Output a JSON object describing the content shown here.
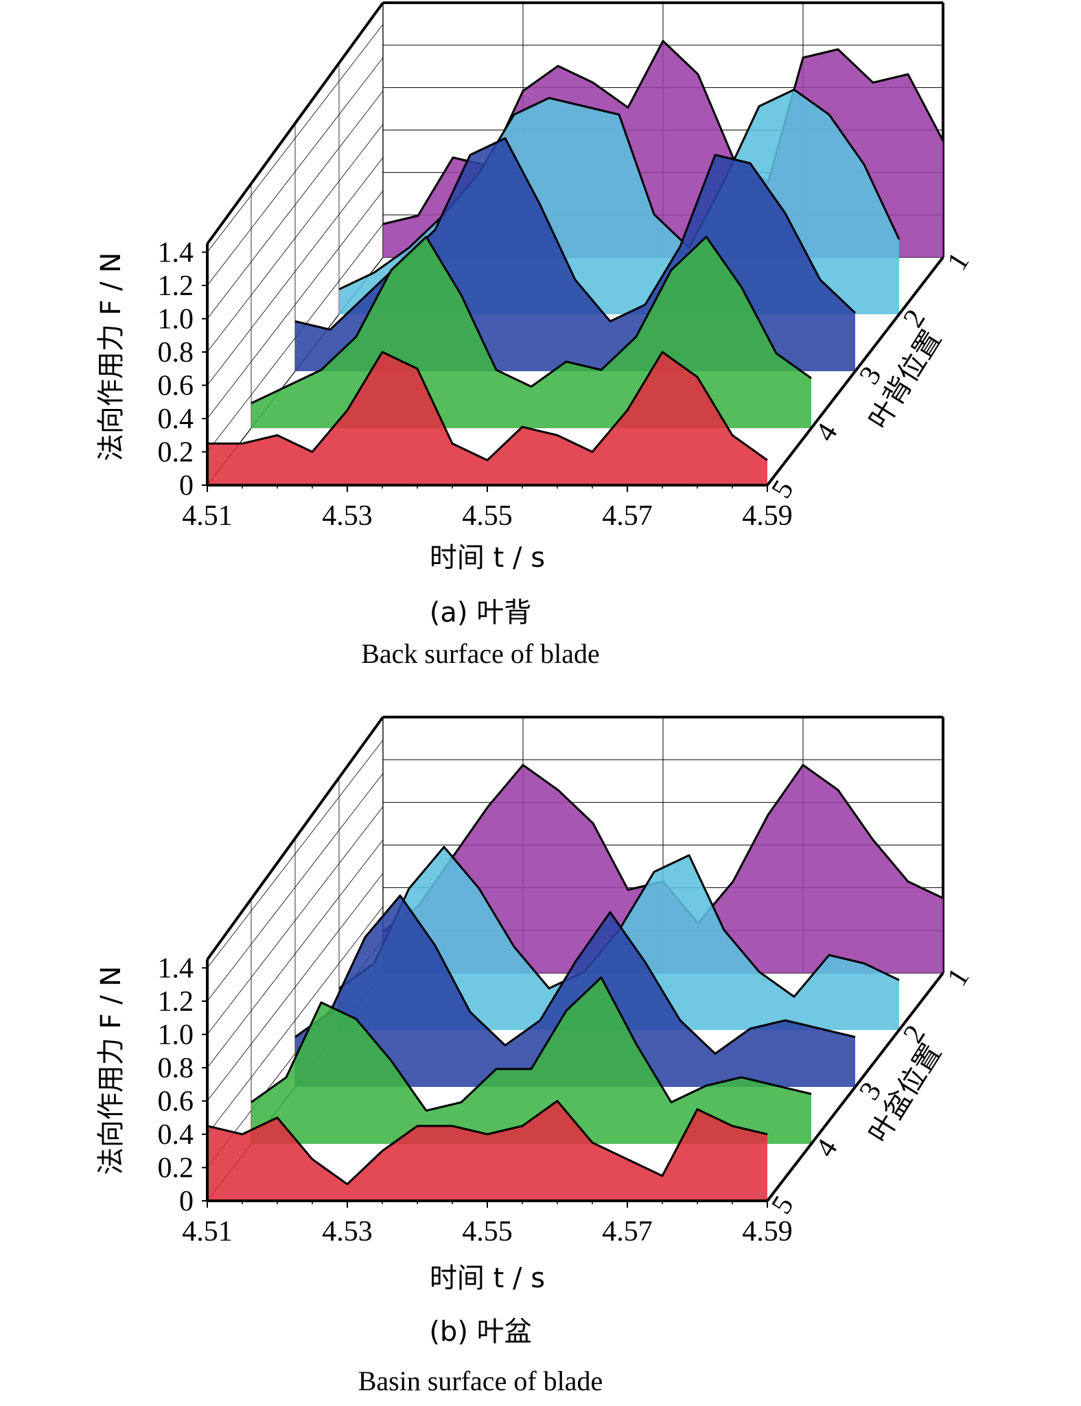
{
  "chart_data": [
    {
      "type": "area",
      "chart_style": "3d-waterfall",
      "ylabel": "法向作用力 F / N",
      "xlabel": "时间 t / s",
      "zlabel": "叶背位置",
      "caption_cn": "(a) 叶背",
      "caption_en": "Back surface of blade",
      "xlim": [
        4.51,
        4.59
      ],
      "ylim": [
        0,
        1.4
      ],
      "x_ticks": [
        "4.51",
        "4.53",
        "4.55",
        "4.57",
        "4.59"
      ],
      "y_ticks": [
        "0",
        "0.2",
        "0.4",
        "0.6",
        "0.8",
        "1.0",
        "1.2",
        "1.4"
      ],
      "z_ticks": [
        "1",
        "2",
        "3",
        "4",
        "5"
      ],
      "grid": true,
      "x": [
        4.51,
        4.515,
        4.52,
        4.525,
        4.53,
        4.535,
        4.54,
        4.545,
        4.55,
        4.555,
        4.56,
        4.565,
        4.57,
        4.575,
        4.58,
        4.585,
        4.59
      ],
      "series": [
        {
          "name": "1",
          "color": "#9B3FA6",
          "values": [
            0.2,
            0.25,
            0.6,
            0.55,
            1.0,
            1.15,
            1.05,
            0.9,
            1.3,
            1.1,
            0.6,
            0.45,
            1.2,
            1.25,
            1.05,
            1.1,
            0.7
          ]
        },
        {
          "name": "2",
          "color": "#5DC0DE",
          "values": [
            0.15,
            0.25,
            0.4,
            0.6,
            0.85,
            1.2,
            1.3,
            1.25,
            1.2,
            0.6,
            0.4,
            0.8,
            1.25,
            1.35,
            1.2,
            0.9,
            0.45
          ]
        },
        {
          "name": "3",
          "color": "#2B46A4",
          "values": [
            0.3,
            0.25,
            0.45,
            0.65,
            0.85,
            1.3,
            1.4,
            1.0,
            0.55,
            0.3,
            0.4,
            0.75,
            1.3,
            1.25,
            0.95,
            0.55,
            0.35
          ]
        },
        {
          "name": "4",
          "color": "#3DB445",
          "values": [
            0.15,
            0.25,
            0.35,
            0.55,
            0.95,
            1.15,
            0.8,
            0.35,
            0.25,
            0.4,
            0.35,
            0.55,
            0.95,
            1.15,
            0.85,
            0.45,
            0.3
          ]
        },
        {
          "name": "5",
          "color": "#E0303F",
          "values": [
            0.25,
            0.25,
            0.3,
            0.2,
            0.45,
            0.8,
            0.7,
            0.25,
            0.15,
            0.35,
            0.3,
            0.2,
            0.45,
            0.8,
            0.65,
            0.3,
            0.15
          ]
        }
      ]
    },
    {
      "type": "area",
      "chart_style": "3d-waterfall",
      "ylabel": "法向作用力 F / N",
      "xlabel": "时间 t / s",
      "zlabel": "叶盆位置",
      "caption_cn": "(b) 叶盆",
      "caption_en": "Basin surface of blade",
      "xlim": [
        4.51,
        4.59
      ],
      "ylim": [
        0,
        1.4
      ],
      "x_ticks": [
        "4.51",
        "4.53",
        "4.55",
        "4.57",
        "4.59"
      ],
      "y_ticks": [
        "0",
        "0.2",
        "0.4",
        "0.6",
        "0.8",
        "1.0",
        "1.2",
        "1.4"
      ],
      "z_ticks": [
        "1",
        "2",
        "3",
        "4",
        "5"
      ],
      "grid": true,
      "x": [
        4.51,
        4.515,
        4.52,
        4.525,
        4.53,
        4.535,
        4.54,
        4.545,
        4.55,
        4.555,
        4.56,
        4.565,
        4.57,
        4.575,
        4.58,
        4.585,
        4.59
      ],
      "series": [
        {
          "name": "1",
          "color": "#9B3FA6",
          "values": [
            0.25,
            0.4,
            0.7,
            1.0,
            1.25,
            1.1,
            0.9,
            0.5,
            0.55,
            0.3,
            0.55,
            0.95,
            1.25,
            1.1,
            0.8,
            0.55,
            0.45
          ]
        },
        {
          "name": "2",
          "color": "#5DC0DE",
          "values": [
            0.25,
            0.4,
            0.85,
            1.1,
            0.85,
            0.5,
            0.25,
            0.35,
            0.6,
            0.95,
            1.05,
            0.6,
            0.35,
            0.2,
            0.45,
            0.4,
            0.3
          ]
        },
        {
          "name": "3",
          "color": "#2B46A4",
          "values": [
            0.3,
            0.45,
            0.9,
            1.15,
            0.85,
            0.45,
            0.25,
            0.4,
            0.75,
            1.05,
            0.75,
            0.4,
            0.2,
            0.35,
            0.4,
            0.35,
            0.3
          ]
        },
        {
          "name": "4",
          "color": "#3DB445",
          "values": [
            0.25,
            0.4,
            0.85,
            0.75,
            0.5,
            0.2,
            0.25,
            0.45,
            0.45,
            0.8,
            1.0,
            0.6,
            0.25,
            0.35,
            0.4,
            0.35,
            0.3
          ]
        },
        {
          "name": "5",
          "color": "#E0303F",
          "values": [
            0.45,
            0.4,
            0.5,
            0.25,
            0.1,
            0.3,
            0.45,
            0.45,
            0.4,
            0.45,
            0.6,
            0.35,
            0.25,
            0.15,
            0.55,
            0.45,
            0.4
          ]
        }
      ]
    }
  ]
}
